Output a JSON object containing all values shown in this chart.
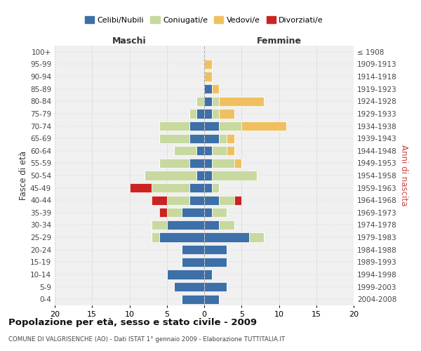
{
  "age_groups": [
    "100+",
    "95-99",
    "90-94",
    "85-89",
    "80-84",
    "75-79",
    "70-74",
    "65-69",
    "60-64",
    "55-59",
    "50-54",
    "45-49",
    "40-44",
    "35-39",
    "30-34",
    "25-29",
    "20-24",
    "15-19",
    "10-14",
    "5-9",
    "0-4"
  ],
  "birth_years": [
    "≤ 1908",
    "1909-1913",
    "1914-1918",
    "1919-1923",
    "1924-1928",
    "1929-1933",
    "1934-1938",
    "1939-1943",
    "1944-1948",
    "1949-1953",
    "1954-1958",
    "1959-1963",
    "1964-1968",
    "1969-1973",
    "1974-1978",
    "1979-1983",
    "1984-1988",
    "1989-1993",
    "1994-1998",
    "1999-2003",
    "2004-2008"
  ],
  "maschi": {
    "celibi": [
      0,
      0,
      0,
      0,
      0,
      1,
      2,
      2,
      1,
      2,
      1,
      2,
      2,
      3,
      5,
      6,
      3,
      3,
      5,
      4,
      3
    ],
    "coniugati": [
      0,
      0,
      0,
      0,
      1,
      1,
      4,
      4,
      3,
      4,
      7,
      5,
      3,
      2,
      2,
      1,
      0,
      0,
      0,
      0,
      0
    ],
    "vedovi": [
      0,
      0,
      0,
      0,
      0,
      0,
      0,
      0,
      0,
      0,
      0,
      0,
      0,
      0,
      0,
      0,
      0,
      0,
      0,
      0,
      0
    ],
    "divorziati": [
      0,
      0,
      0,
      0,
      0,
      0,
      0,
      0,
      0,
      0,
      0,
      3,
      2,
      1,
      0,
      0,
      0,
      0,
      0,
      0,
      0
    ]
  },
  "femmine": {
    "nubili": [
      0,
      0,
      0,
      1,
      1,
      1,
      2,
      2,
      1,
      1,
      1,
      1,
      2,
      1,
      2,
      6,
      3,
      3,
      1,
      3,
      2
    ],
    "coniugate": [
      0,
      0,
      0,
      0,
      1,
      1,
      3,
      1,
      2,
      3,
      6,
      1,
      2,
      2,
      2,
      2,
      0,
      0,
      0,
      0,
      0
    ],
    "vedove": [
      0,
      1,
      1,
      1,
      6,
      2,
      6,
      1,
      1,
      1,
      0,
      0,
      0,
      0,
      0,
      0,
      0,
      0,
      0,
      0,
      0
    ],
    "divorziate": [
      0,
      0,
      0,
      0,
      0,
      0,
      0,
      0,
      0,
      0,
      0,
      0,
      1,
      0,
      0,
      0,
      0,
      0,
      0,
      0,
      0
    ]
  },
  "colors": {
    "celibi_nubili": "#3d6fa8",
    "coniugati": "#c8d9a0",
    "vedovi": "#f0c060",
    "divorziati": "#cc2222"
  },
  "title": "Popolazione per età, sesso e stato civile - 2009",
  "subtitle": "COMUNE DI VALGRISENCHE (AO) - Dati ISTAT 1° gennaio 2009 - Elaborazione TUTTITALIA.IT",
  "ylabel_left": "Fasce di età",
  "ylabel_right": "Anni di nascita",
  "xlabel_left": "Maschi",
  "xlabel_right": "Femmine",
  "xlim": 20,
  "bg_color": "#ffffff",
  "plot_bg": "#f0f0f0",
  "grid_color": "#cccccc"
}
